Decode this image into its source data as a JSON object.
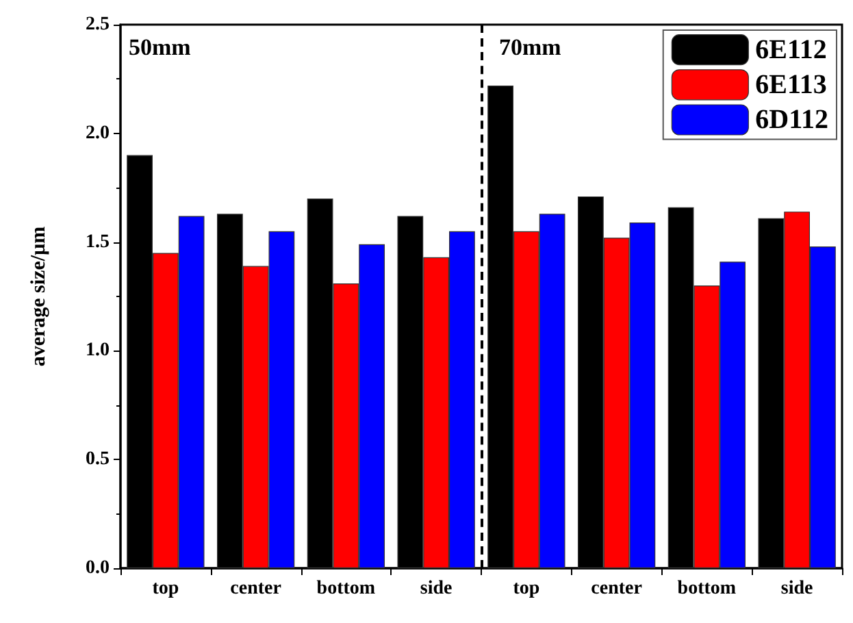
{
  "chart_data": {
    "type": "bar",
    "ylabel": "average size/µm",
    "categories": [
      "top",
      "center",
      "bottom",
      "side",
      "top",
      "center",
      "bottom",
      "side"
    ],
    "series": [
      {
        "name": "6E112",
        "color": "#000000",
        "values": [
          1.9,
          1.63,
          1.7,
          1.62,
          2.22,
          1.71,
          1.66,
          1.61
        ]
      },
      {
        "name": "6E113",
        "color": "#ff0000",
        "values": [
          1.45,
          1.39,
          1.31,
          1.43,
          1.55,
          1.52,
          1.3,
          1.64
        ]
      },
      {
        "name": "6D112",
        "color": "#0000ff",
        "values": [
          1.62,
          1.55,
          1.49,
          1.55,
          1.63,
          1.59,
          1.41,
          1.48
        ]
      }
    ],
    "ylim": [
      0,
      2.5
    ],
    "yticks": [
      {
        "value": 0,
        "label": "0.0"
      },
      {
        "value": 0.5,
        "label": "0.5"
      },
      {
        "value": 1,
        "label": "1.0"
      },
      {
        "value": 1.5,
        "label": "1.5"
      },
      {
        "value": 2,
        "label": "2.0"
      },
      {
        "value": 2.5,
        "label": "2.5"
      }
    ],
    "annotations": [
      "50mm",
      "70mm"
    ],
    "legend": "top right",
    "grid": false
  }
}
